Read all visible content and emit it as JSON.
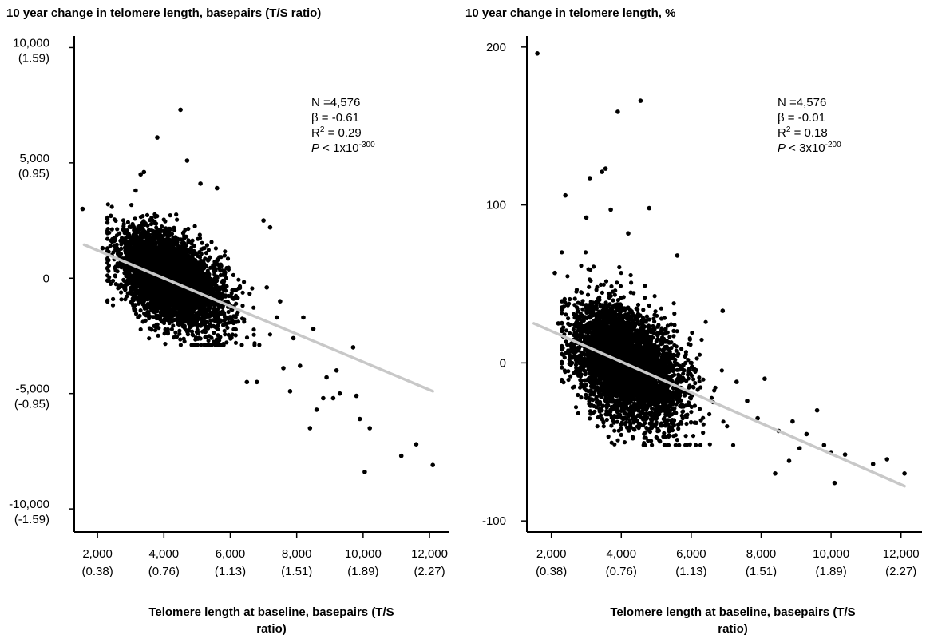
{
  "chart_data": [
    {
      "type": "scatter",
      "title": "10 year change in telomere length, basepairs (T/S ratio)",
      "xlabel": [
        "Telomere length at baseline, basepairs (T/S",
        "ratio)"
      ],
      "ylabel": "",
      "xlim": [
        1300,
        12600
      ],
      "ylim": [
        -11000,
        10500
      ],
      "xticks": [
        {
          "value": 2000,
          "label": "2,000",
          "sublabel": "(0.38)"
        },
        {
          "value": 4000,
          "label": "4,000",
          "sublabel": "(0.76)"
        },
        {
          "value": 6000,
          "label": "6,000",
          "sublabel": "(1.13)"
        },
        {
          "value": 8000,
          "label": "8,000",
          "sublabel": "(1.51)"
        },
        {
          "value": 10000,
          "label": "10,000",
          "sublabel": "(1.89)"
        },
        {
          "value": 12000,
          "label": "12,000",
          "sublabel": "(2.27)"
        }
      ],
      "yticks": [
        {
          "value": 10000,
          "label": "10,000",
          "sublabel": "(1.59)"
        },
        {
          "value": 5000,
          "label": "5,000",
          "sublabel": "(0.95)"
        },
        {
          "value": 0,
          "label": "0",
          "sublabel": ""
        },
        {
          "value": -5000,
          "label": "-5,000",
          "sublabel": "(-0.95)"
        },
        {
          "value": -10000,
          "label": "-10,000",
          "sublabel": "(-1.59)"
        }
      ],
      "annotation": {
        "n": "N =4,576",
        "beta": "β = -0.61",
        "r2_base": "R",
        "r2_sup": "2",
        "r2_rest": " = 0.29",
        "p_italic": "P",
        "p_rest": " < 1x10",
        "p_sup": "-300"
      },
      "fit_line": {
        "x": [
          1600,
          12100
        ],
        "y": [
          1450,
          -4900
        ],
        "color": "#c8c8c8"
      },
      "cloud": {
        "center": [
          4150,
          0
        ],
        "n": 4576,
        "seed": 7,
        "slope": -0.61,
        "sd_x": 720,
        "sd_noise": 900,
        "x_clip": [
          2300,
          7200
        ],
        "y_clip": [
          -2900,
          3300
        ]
      },
      "points": [
        {
          "x": 1550,
          "y": 3000
        },
        {
          "x": 2150,
          "y": 1300
        },
        {
          "x": 2400,
          "y": 2700
        },
        {
          "x": 3800,
          "y": 6100
        },
        {
          "x": 4500,
          "y": 7300
        },
        {
          "x": 4700,
          "y": 5100
        },
        {
          "x": 3300,
          "y": 4500
        },
        {
          "x": 3400,
          "y": 4600
        },
        {
          "x": 3150,
          "y": 3800
        },
        {
          "x": 5100,
          "y": 4100
        },
        {
          "x": 5600,
          "y": 3900
        },
        {
          "x": 7000,
          "y": 2500
        },
        {
          "x": 7200,
          "y": 2200
        },
        {
          "x": 6500,
          "y": -4500
        },
        {
          "x": 6800,
          "y": -4500
        },
        {
          "x": 7600,
          "y": -3900
        },
        {
          "x": 7800,
          "y": -4900
        },
        {
          "x": 8100,
          "y": -3800
        },
        {
          "x": 8400,
          "y": -6500
        },
        {
          "x": 8600,
          "y": -5700
        },
        {
          "x": 8800,
          "y": -5200
        },
        {
          "x": 8900,
          "y": -4300
        },
        {
          "x": 9100,
          "y": -5200
        },
        {
          "x": 9300,
          "y": -5000
        },
        {
          "x": 9200,
          "y": -4000
        },
        {
          "x": 9700,
          "y": -3000
        },
        {
          "x": 9800,
          "y": -5100
        },
        {
          "x": 9900,
          "y": -6100
        },
        {
          "x": 10200,
          "y": -6500
        },
        {
          "x": 10050,
          "y": -8400
        },
        {
          "x": 11150,
          "y": -7700
        },
        {
          "x": 11600,
          "y": -7200
        },
        {
          "x": 12100,
          "y": -8100
        },
        {
          "x": 7400,
          "y": -1700
        },
        {
          "x": 7900,
          "y": -2600
        },
        {
          "x": 8200,
          "y": -1700
        },
        {
          "x": 8500,
          "y": -2200
        },
        {
          "x": 7100,
          "y": -400
        },
        {
          "x": 7500,
          "y": -1000
        }
      ]
    },
    {
      "type": "scatter",
      "title": "10 year change in telomere length, %",
      "xlabel": [
        "Telomere length at baseline, basepairs (T/S",
        "ratio)"
      ],
      "ylabel": "",
      "xlim": [
        1300,
        12600
      ],
      "ylim": [
        -107,
        207
      ],
      "xticks": [
        {
          "value": 2000,
          "label": "2,000",
          "sublabel": "(0.38)"
        },
        {
          "value": 4000,
          "label": "4,000",
          "sublabel": "(0.76)"
        },
        {
          "value": 6000,
          "label": "6,000",
          "sublabel": "(1.13)"
        },
        {
          "value": 8000,
          "label": "8,000",
          "sublabel": "(1.51)"
        },
        {
          "value": 10000,
          "label": "10,000",
          "sublabel": "(1.89)"
        },
        {
          "value": 12000,
          "label": "12,000",
          "sublabel": "(2.27)"
        }
      ],
      "yticks": [
        {
          "value": 200,
          "label": "200",
          "sublabel": ""
        },
        {
          "value": 100,
          "label": "100",
          "sublabel": ""
        },
        {
          "value": 0,
          "label": "0",
          "sublabel": ""
        },
        {
          "value": -100,
          "label": "-100",
          "sublabel": ""
        }
      ],
      "annotation": {
        "n": "N =4,576",
        "beta": "β = -0.01",
        "r2_base": "R",
        "r2_sup": "2",
        "r2_rest": " = 0.18",
        "p_italic": "P",
        "p_rest": " < 3x10",
        "p_sup": "-200"
      },
      "fit_line": {
        "x": [
          1500,
          12100
        ],
        "y": [
          25,
          -78
        ],
        "color": "#c8c8c8"
      },
      "cloud": {
        "center": [
          4100,
          0
        ],
        "n": 4576,
        "seed": 11,
        "slope": -0.0098,
        "sd_x": 700,
        "sd_noise": 17,
        "x_clip": [
          2300,
          7200
        ],
        "y_clip": [
          -52,
          70
        ]
      },
      "points": [
        {
          "x": 1600,
          "y": 196
        },
        {
          "x": 3900,
          "y": 159
        },
        {
          "x": 4550,
          "y": 166
        },
        {
          "x": 3450,
          "y": 121
        },
        {
          "x": 3550,
          "y": 123
        },
        {
          "x": 3100,
          "y": 117
        },
        {
          "x": 2400,
          "y": 106
        },
        {
          "x": 4800,
          "y": 98
        },
        {
          "x": 3700,
          "y": 97
        },
        {
          "x": 3000,
          "y": 92
        },
        {
          "x": 4200,
          "y": 82
        },
        {
          "x": 5600,
          "y": 68
        },
        {
          "x": 2100,
          "y": 57
        },
        {
          "x": 6900,
          "y": 33
        },
        {
          "x": 2200,
          "y": 25
        },
        {
          "x": 8500,
          "y": -43
        },
        {
          "x": 8900,
          "y": -37
        },
        {
          "x": 9300,
          "y": -45
        },
        {
          "x": 9600,
          "y": -30
        },
        {
          "x": 9800,
          "y": -52
        },
        {
          "x": 10000,
          "y": -57
        },
        {
          "x": 10100,
          "y": -76
        },
        {
          "x": 10400,
          "y": -58
        },
        {
          "x": 11200,
          "y": -64
        },
        {
          "x": 11600,
          "y": -61
        },
        {
          "x": 12100,
          "y": -70
        },
        {
          "x": 8400,
          "y": -70
        },
        {
          "x": 7900,
          "y": -35
        },
        {
          "x": 7600,
          "y": -24
        },
        {
          "x": 8100,
          "y": -10
        },
        {
          "x": 7300,
          "y": -12
        },
        {
          "x": 8800,
          "y": -62
        },
        {
          "x": 9100,
          "y": -54
        }
      ]
    }
  ]
}
